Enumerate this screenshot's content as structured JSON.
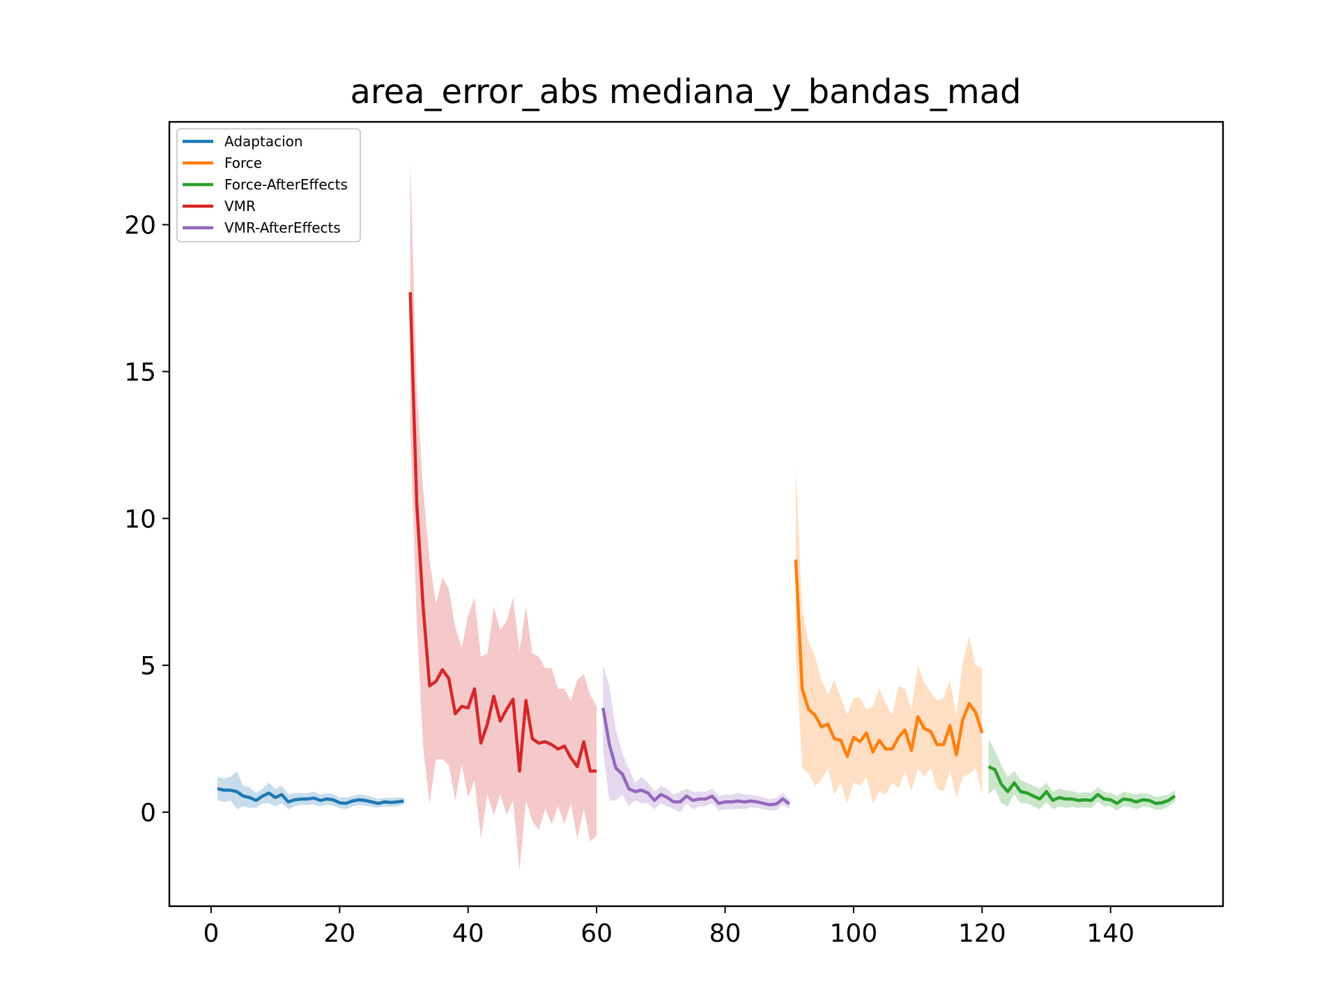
{
  "chart_data": {
    "type": "line",
    "title": "area_error_abs mediana_y_bandas_mad",
    "xlabel": "",
    "ylabel": "",
    "xlim": [
      -6.5,
      157.5
    ],
    "ylim": [
      -3.2,
      23.5
    ],
    "xticks": [
      0,
      20,
      40,
      60,
      80,
      100,
      120,
      140
    ],
    "xtick_labels": [
      "0",
      "20",
      "40",
      "60",
      "80",
      "100",
      "120",
      "140"
    ],
    "yticks": [
      0,
      5,
      10,
      15,
      20
    ],
    "ytick_labels": [
      "0",
      "5",
      "10",
      "15",
      "20"
    ],
    "grid": false,
    "legend_position": "top-left",
    "series": [
      {
        "name": "Adaptacion",
        "color": "#1f77b4",
        "x": [
          1,
          2,
          3,
          4,
          5,
          6,
          7,
          8,
          9,
          10,
          11,
          12,
          13,
          14,
          15,
          16,
          17,
          18,
          19,
          20,
          21,
          22,
          23,
          24,
          25,
          26,
          27,
          28,
          29,
          30
        ],
        "values": [
          0.8,
          0.75,
          0.75,
          0.7,
          0.55,
          0.5,
          0.4,
          0.55,
          0.65,
          0.5,
          0.6,
          0.35,
          0.42,
          0.45,
          0.45,
          0.48,
          0.4,
          0.45,
          0.42,
          0.32,
          0.3,
          0.38,
          0.42,
          0.4,
          0.35,
          0.3,
          0.35,
          0.33,
          0.35,
          0.38
        ],
        "upper": [
          1.2,
          1.15,
          1.2,
          1.4,
          0.9,
          0.85,
          0.65,
          0.8,
          1.0,
          0.8,
          0.9,
          0.6,
          0.65,
          0.65,
          0.65,
          0.7,
          0.6,
          0.65,
          0.62,
          0.5,
          0.5,
          0.55,
          0.6,
          0.58,
          0.52,
          0.45,
          0.5,
          0.48,
          0.5,
          0.5
        ],
        "lower": [
          0.4,
          0.35,
          0.4,
          0.1,
          0.2,
          0.15,
          0.15,
          0.3,
          0.3,
          0.2,
          0.3,
          0.1,
          0.2,
          0.25,
          0.25,
          0.26,
          0.2,
          0.25,
          0.22,
          0.14,
          0.1,
          0.2,
          0.24,
          0.22,
          0.18,
          0.15,
          0.2,
          0.18,
          0.2,
          0.26
        ]
      },
      {
        "name": "Force",
        "color": "#ff7f0e",
        "x": [
          91,
          92,
          93,
          94,
          95,
          96,
          97,
          98,
          99,
          100,
          101,
          102,
          103,
          104,
          105,
          106,
          107,
          108,
          109,
          110,
          111,
          112,
          113,
          114,
          115,
          116,
          117,
          118,
          119,
          120
        ],
        "values": [
          8.6,
          4.2,
          3.5,
          3.3,
          2.9,
          3.0,
          2.5,
          2.45,
          1.9,
          2.55,
          2.4,
          2.7,
          2.05,
          2.45,
          2.15,
          2.15,
          2.55,
          2.8,
          2.1,
          3.25,
          2.85,
          2.75,
          2.3,
          2.3,
          2.95,
          1.95,
          3.15,
          3.7,
          3.4,
          2.7
        ],
        "upper": [
          11.8,
          6.9,
          5.8,
          5.3,
          4.5,
          4.0,
          4.5,
          3.9,
          3.3,
          3.9,
          3.9,
          3.5,
          3.6,
          4.2,
          3.7,
          3.3,
          4.3,
          4.2,
          3.5,
          5.0,
          4.4,
          4.1,
          3.8,
          3.9,
          4.5,
          3.3,
          5.1,
          6.0,
          5.0,
          4.9
        ],
        "lower": [
          5.4,
          1.5,
          1.3,
          0.9,
          1.1,
          1.5,
          0.6,
          1.0,
          0.3,
          1.0,
          0.9,
          1.2,
          0.3,
          0.7,
          0.6,
          1.0,
          0.8,
          1.4,
          0.7,
          1.5,
          1.2,
          1.5,
          0.8,
          0.7,
          1.4,
          0.5,
          1.2,
          1.3,
          1.5,
          0.6
        ]
      },
      {
        "name": "Force-AfterEffects",
        "color": "#2ca02c",
        "x": [
          121,
          122,
          123,
          124,
          125,
          126,
          127,
          128,
          129,
          130,
          131,
          132,
          133,
          134,
          135,
          136,
          137,
          138,
          139,
          140,
          141,
          142,
          143,
          144,
          145,
          146,
          147,
          148,
          149,
          150
        ],
        "values": [
          1.55,
          1.45,
          0.95,
          0.7,
          1.0,
          0.7,
          0.65,
          0.55,
          0.45,
          0.7,
          0.4,
          0.5,
          0.45,
          0.45,
          0.4,
          0.42,
          0.4,
          0.6,
          0.45,
          0.42,
          0.3,
          0.45,
          0.42,
          0.35,
          0.42,
          0.4,
          0.3,
          0.32,
          0.4,
          0.55
        ],
        "upper": [
          2.5,
          2.1,
          1.6,
          1.2,
          1.4,
          1.1,
          1.0,
          0.9,
          0.8,
          1.0,
          0.7,
          0.8,
          0.75,
          0.72,
          0.65,
          0.68,
          0.65,
          0.85,
          0.7,
          0.65,
          0.55,
          0.7,
          0.65,
          0.6,
          0.65,
          0.62,
          0.52,
          0.55,
          0.6,
          0.75
        ],
        "lower": [
          0.6,
          0.8,
          0.3,
          0.2,
          0.6,
          0.3,
          0.3,
          0.2,
          0.1,
          0.35,
          0.1,
          0.2,
          0.15,
          0.18,
          0.15,
          0.16,
          0.15,
          0.35,
          0.2,
          0.19,
          0.05,
          0.2,
          0.19,
          0.1,
          0.19,
          0.18,
          0.08,
          0.09,
          0.2,
          0.35
        ]
      },
      {
        "name": "VMR",
        "color": "#d62728",
        "x": [
          31,
          32,
          33,
          34,
          35,
          36,
          37,
          38,
          39,
          40,
          41,
          42,
          43,
          44,
          45,
          46,
          47,
          48,
          49,
          50,
          51,
          52,
          53,
          54,
          55,
          56,
          57,
          58,
          59,
          60
        ],
        "values": [
          17.7,
          10.5,
          7.0,
          4.3,
          4.45,
          4.85,
          4.55,
          3.35,
          3.6,
          3.55,
          4.2,
          2.35,
          3.0,
          3.95,
          3.1,
          3.5,
          3.85,
          1.4,
          3.8,
          2.5,
          2.35,
          2.4,
          2.3,
          2.15,
          2.25,
          1.85,
          1.55,
          2.4,
          1.4,
          1.4
        ],
        "upper": [
          22.2,
          14.5,
          11.0,
          8.6,
          7.1,
          8.0,
          7.6,
          6.3,
          5.6,
          6.7,
          7.3,
          5.3,
          5.4,
          7.0,
          6.2,
          6.5,
          7.3,
          5.5,
          7.0,
          5.4,
          5.3,
          4.9,
          4.9,
          4.2,
          4.2,
          3.8,
          4.5,
          4.7,
          4.0,
          3.6
        ],
        "lower": [
          13.0,
          6.5,
          2.2,
          0.3,
          1.8,
          1.8,
          1.6,
          0.4,
          1.6,
          0.5,
          1.1,
          -0.9,
          0.6,
          -0.1,
          0.6,
          -0.1,
          0.4,
          -2.0,
          0.4,
          -0.3,
          -0.6,
          0.1,
          -0.4,
          0.2,
          -0.4,
          0.3,
          -0.9,
          0.1,
          -1.0,
          -0.8
        ]
      },
      {
        "name": "VMR-AfterEffects",
        "color": "#9467bd",
        "x": [
          61,
          62,
          63,
          64,
          65,
          66,
          67,
          68,
          69,
          70,
          71,
          72,
          73,
          74,
          75,
          76,
          77,
          78,
          79,
          80,
          81,
          82,
          83,
          84,
          85,
          86,
          87,
          88,
          89,
          90
        ],
        "values": [
          3.55,
          2.3,
          1.5,
          1.3,
          0.8,
          0.7,
          0.75,
          0.65,
          0.4,
          0.6,
          0.5,
          0.35,
          0.35,
          0.55,
          0.4,
          0.45,
          0.45,
          0.55,
          0.3,
          0.35,
          0.35,
          0.38,
          0.35,
          0.38,
          0.35,
          0.3,
          0.25,
          0.28,
          0.45,
          0.28
        ],
        "upper": [
          5.0,
          4.3,
          2.8,
          2.0,
          1.5,
          1.0,
          1.2,
          1.0,
          0.7,
          0.9,
          0.8,
          0.6,
          0.7,
          0.8,
          0.7,
          0.7,
          0.7,
          0.8,
          0.55,
          0.6,
          0.6,
          0.65,
          0.6,
          0.6,
          0.55,
          0.5,
          0.45,
          0.48,
          0.65,
          0.45
        ],
        "lower": [
          2.1,
          0.4,
          0.4,
          0.6,
          0.2,
          0.4,
          0.3,
          0.3,
          0.1,
          0.3,
          0.2,
          0.1,
          0.0,
          0.3,
          0.1,
          0.2,
          0.2,
          0.3,
          0.05,
          0.1,
          0.1,
          0.11,
          0.1,
          0.16,
          0.15,
          0.1,
          0.05,
          0.08,
          0.25,
          0.11
        ]
      }
    ]
  }
}
